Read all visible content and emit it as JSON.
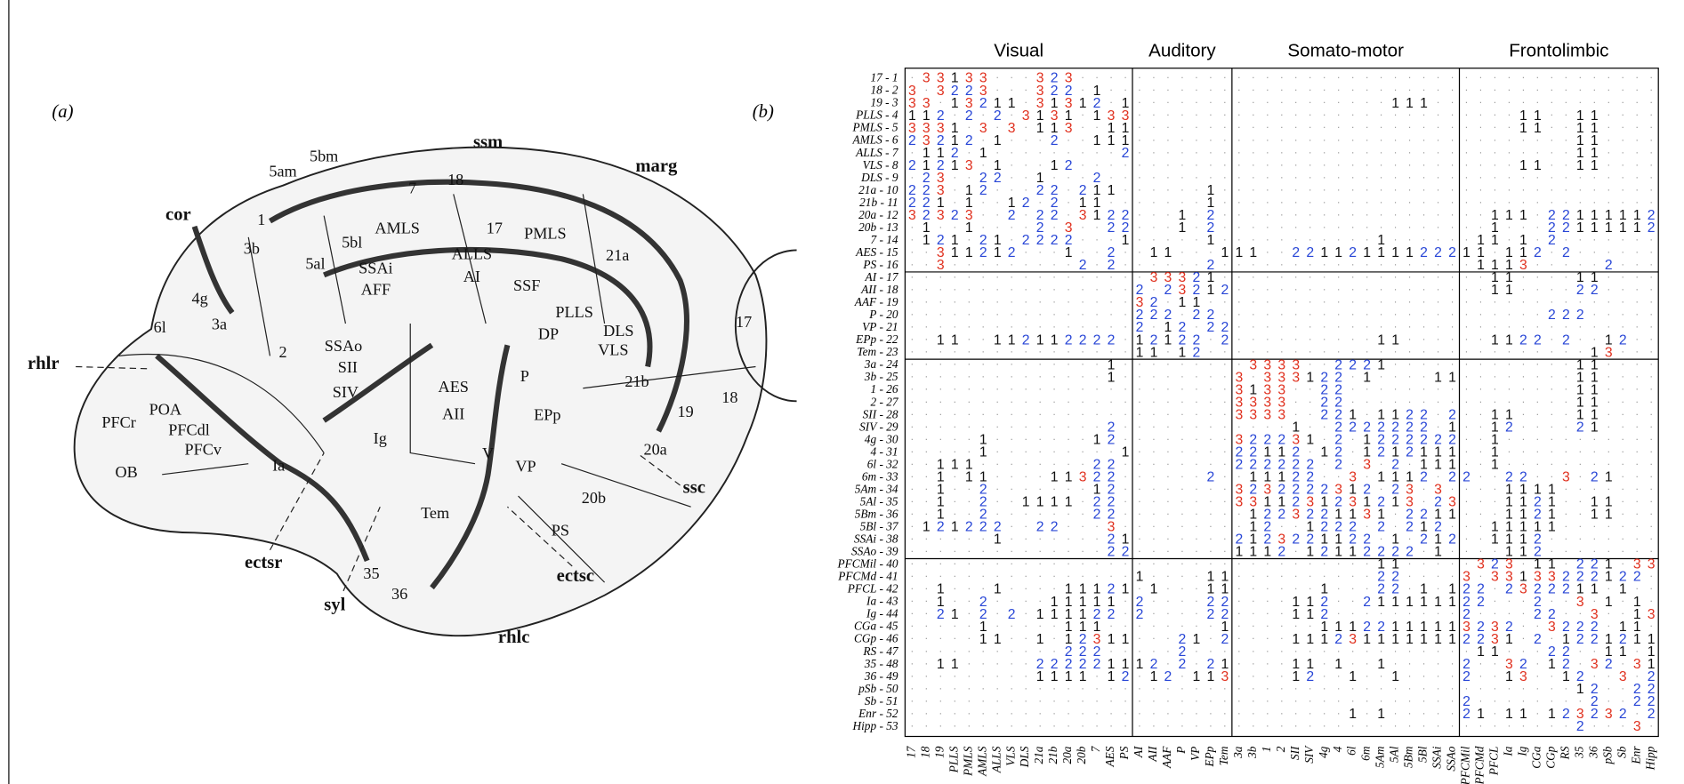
{
  "panel_a": {
    "label": "(a)",
    "areas": [
      "ssm",
      "marg",
      "5bm",
      "5am",
      "cor",
      "18",
      "7",
      "1",
      "3b",
      "AMLS",
      "17",
      "PMLS",
      "5bl",
      "5al",
      "21a",
      "4g",
      "SSAi",
      "ALLS",
      "AFF",
      "AI",
      "SSF",
      "PLLS",
      "DLS",
      "DP",
      "VLS",
      "6l",
      "3a",
      "2",
      "SSAo",
      "SII",
      "rhlr",
      "SIV",
      "AES",
      "AII",
      "P",
      "EPp",
      "21b",
      "19",
      "18",
      "17",
      "PFCr",
      "POA",
      "PFCdl",
      "PFCv",
      "OB",
      "Ig",
      "Ia",
      "V",
      "VP",
      "20a",
      "ssc",
      "Tem",
      "20b",
      "PS",
      "ectsr",
      "syl",
      "35",
      "36",
      "ectsc",
      "rhlc"
    ]
  },
  "panel_b": {
    "label": "(b)"
  },
  "matrix": {
    "groups": [
      "Visual",
      "Auditory",
      "Somato-motor",
      "Frontolimbic"
    ],
    "digit_colors": {
      "1": "#111111",
      "2": "#2846d6",
      "3": "#e0301e",
      ".": "#9a9a9a"
    },
    "columns": [
      "17",
      "18",
      "19",
      "PLLS",
      "PMLS",
      "AMLS",
      "ALLS",
      "VLS",
      "DLS",
      "21a",
      "21b",
      "20a",
      "20b",
      "7",
      "AES",
      "PS",
      "AI",
      "AII",
      "AAF",
      "P",
      "VP",
      "EPp",
      "Tem",
      "3a",
      "3b",
      "1",
      "2",
      "SII",
      "SIV",
      "4g",
      "4",
      "6l",
      "6m",
      "5Am",
      "5Al",
      "5Bm",
      "5Bl",
      "SSAi",
      "SSAo",
      "PFCMil",
      "PFCMd",
      "PFCL",
      "Ia",
      "Ig",
      "CGa",
      "CGp",
      "RS",
      "35",
      "36",
      "pSb",
      "Sb",
      "Enr",
      "Hipp"
    ],
    "rows": [
      {
        "label": "17 - 1",
        "cells": [
          ".33133...323....",
          ".......",
          "................",
          ".............."
        ]
      },
      {
        "label": "18 - 2",
        "cells": [
          "3.3223...322.1..",
          ".......",
          "................",
          ".............."
        ]
      },
      {
        "label": "19 - 3",
        "cells": [
          "33.13211.31312.1",
          ".......",
          "...........111..",
          ".............."
        ]
      },
      {
        "label": "PLLS - 4",
        "cells": [
          "112.2.2.3131.133",
          ".......",
          "................",
          "....11..11...."
        ]
      },
      {
        "label": "PMLS - 5",
        "cells": [
          "3331.3.3.113..11",
          ".......",
          "................",
          "....11..11...."
        ]
      },
      {
        "label": "AMLS - 6",
        "cells": [
          "23212.1...2..111",
          ".......",
          "................",
          "........11...."
        ]
      },
      {
        "label": "ALLS - 7",
        "cells": [
          ".112.1.........2",
          ".......",
          "................",
          "........11...."
        ]
      },
      {
        "label": "VLS - 8",
        "cells": [
          "21213.1...12....",
          ".......",
          "................",
          "....11..11...."
        ]
      },
      {
        "label": "DLS - 9",
        "cells": [
          ".23..22..1...2..",
          ".......",
          "................",
          ".............."
        ]
      },
      {
        "label": "21a - 10",
        "cells": [
          "223.12...22.211.",
          ".....1.",
          "................",
          ".............."
        ]
      },
      {
        "label": "21b - 11",
        "cells": [
          "221.1..12.2.11..",
          ".....1.",
          "................",
          ".............."
        ]
      },
      {
        "label": "20a - 12",
        "cells": [
          "32323..2.22.3122",
          "...1.2.",
          "................",
          "..111.22111112"
        ]
      },
      {
        "label": "20b - 13",
        "cells": [
          ".1..1....2.3..22",
          "...1.2.",
          "................",
          "..1...22111112"
        ]
      },
      {
        "label": "7 - 14",
        "cells": [
          ".121.21.2222...1",
          ".....1.",
          "..........1.....",
          ".11.1.2......."
        ]
      },
      {
        "label": "AES - 15",
        "cells": [
          "..311212...1..2.",
          ".11...1",
          "11..221121111222",
          "11.112.2......"
        ]
      },
      {
        "label": "PS - 16",
        "cells": [
          "..3.........2.2.",
          ".....2.",
          "................",
          ".1113.....2..."
        ]
      },
      {
        "label": "AI - 17",
        "cells": [
          "................",
          ".33321.",
          "................",
          "..11....11...."
        ]
      },
      {
        "label": "AII - 18",
        "cells": [
          "................",
          "2.23212",
          "................",
          "..11....22...."
        ]
      },
      {
        "label": "AAF - 19",
        "cells": [
          "................",
          "32.11..",
          "................",
          ".............."
        ]
      },
      {
        "label": "P - 20",
        "cells": [
          "................",
          "222.22.",
          "................",
          "......222....."
        ]
      },
      {
        "label": "VP - 21",
        "cells": [
          "................",
          "2.12.22",
          "................",
          ".............."
        ]
      },
      {
        "label": "EPp - 22",
        "cells": [
          "..11..112112222.",
          "12122.2",
          "..........11....",
          "..1122.2..12.."
        ]
      },
      {
        "label": "Tem - 23",
        "cells": [
          "................",
          "11.12..",
          "................",
          ".........13..."
        ]
      },
      {
        "label": "3a - 24",
        "cells": [
          "..............1.",
          ".......",
          ".3333..2221.....",
          "........11...."
        ]
      },
      {
        "label": "3b - 25",
        "cells": [
          "..............1.",
          ".......",
          "3.333122.1....11",
          "........11...."
        ]
      },
      {
        "label": "1 - 26",
        "cells": [
          "................",
          ".......",
          "3133..22........",
          "........11...."
        ]
      },
      {
        "label": "2 - 27",
        "cells": [
          "................",
          ".......",
          "3333..22........",
          "........11...."
        ]
      },
      {
        "label": "SII - 28",
        "cells": [
          "................",
          ".......",
          "3333..221.1122.2",
          "..11....11...."
        ]
      },
      {
        "label": "SIV - 29",
        "cells": [
          "..............2.",
          ".......",
          "....1..2222222.1",
          "..12....21...."
        ]
      },
      {
        "label": "4g - 30",
        "cells": [
          ".....1.......12.",
          ".......",
          "322231.2.1222222",
          "..1..........."
        ]
      },
      {
        "label": "4 - 31",
        "cells": [
          ".....1.........1",
          ".......",
          "22112.12.1212111",
          "..1..........."
        ]
      },
      {
        "label": "6l - 32",
        "cells": [
          "..111........22.",
          ".......",
          "222222.2.3.2.111",
          "..1..........."
        ]
      },
      {
        "label": "6m - 33",
        "cells": [
          "..1.11....11322.",
          ".....2.",
          ".11122..3.1112.2",
          "2..22..3.21..."
        ]
      },
      {
        "label": "5Am - 34",
        "cells": [
          "..1..2.......12.",
          ".......",
          "3232222312.23.3.",
          "...1111......."
        ]
      },
      {
        "label": "5Al - 35",
        "cells": [
          "..1..2..1111.22.",
          ".......",
          "3311231231213.23",
          "...1121..11..."
        ]
      },
      {
        "label": "5Bm - 36",
        "cells": [
          "..1..2.......22.",
          ".......",
          ".1223221131.2211",
          "...1121..11..."
        ]
      },
      {
        "label": "5Bl - 37",
        "cells": [
          ".121222..22...3.",
          ".......",
          ".12..1222.2.212.",
          "..11111......."
        ]
      },
      {
        "label": "SSAi - 38",
        "cells": [
          "......1.......21",
          ".......",
          "2123221122.1.212",
          "..1112........"
        ]
      },
      {
        "label": "SSAo - 39",
        "cells": [
          "..............22",
          ".......",
          "1112.12112222.1.",
          "...112........"
        ]
      },
      {
        "label": "PFCMil - 40",
        "cells": [
          "................",
          ".......",
          "..........11....",
          ".323.11.221.33"
        ]
      },
      {
        "label": "PFCMd - 41",
        "cells": [
          "................",
          "1....11",
          "..........22....",
          "3.33133222122."
        ]
      },
      {
        "label": "PFCL - 42",
        "cells": [
          "..1...1....11121",
          ".1...11",
          "......1...22.1.1",
          "22.2322211.1.."
        ]
      },
      {
        "label": "Ia - 43",
        "cells": [
          "..1..2....11111.",
          "2....22",
          "....112..2111111",
          "22...2..3.1.1."
        ]
      },
      {
        "label": "Ig - 44",
        "cells": [
          "..21.2.2.111122.",
          "2....22",
          "....112.........",
          "2....22..3..13"
        ]
      },
      {
        "label": "CGa - 45",
        "cells": [
          ".....1.....111..",
          "......1",
          "......1112211111",
          "3232..3222.11."
        ]
      },
      {
        "label": "CGp - 46",
        "cells": [
          ".....11..1.12311",
          "...21.2",
          "....111231111111",
          "2231.2.1221211"
        ]
      },
      {
        "label": "RS - 47",
        "cells": [
          "...........222..",
          "...2...",
          "................",
          ".11...22..11.1"
        ]
      },
      {
        "label": "35 - 48",
        "cells": [
          "..11.....2222211",
          "12.2.21",
          "....11.1..1.....",
          "2..32.12.32.31"
        ]
      },
      {
        "label": "36 - 49",
        "cells": [
          ".........1111.12",
          ".12.113",
          "....12..1..1....",
          "2..13..12..3.2"
        ]
      },
      {
        "label": "pSb - 50",
        "cells": [
          "................",
          ".......",
          "................",
          "........12..22"
        ]
      },
      {
        "label": "Sb - 51",
        "cells": [
          "................",
          ".......",
          "................",
          "2........2..22"
        ]
      },
      {
        "label": "Enr - 52",
        "cells": [
          "................",
          ".......",
          "........1.1.....",
          "21.11.123232.2"
        ]
      },
      {
        "label": "Hipp - 53",
        "cells": [
          "................",
          ".......",
          "................",
          "........2...3."
        ]
      }
    ]
  }
}
